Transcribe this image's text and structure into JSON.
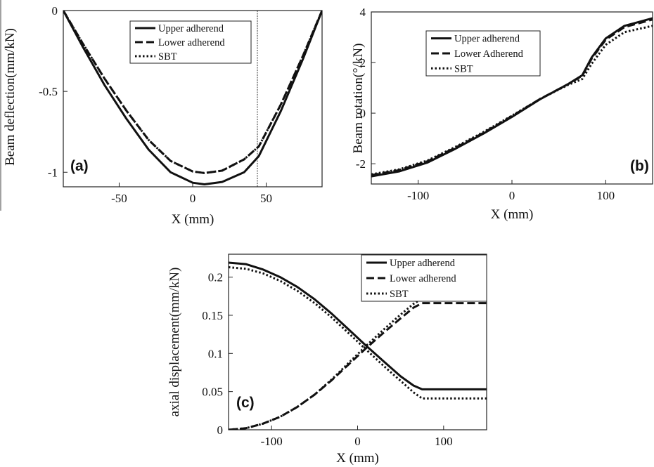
{
  "chart_data": [
    {
      "type": "line",
      "panel_label": "(a)",
      "xlabel": "X (mm)",
      "ylabel": "Beam deflection(mm/kN)",
      "xlim": [
        -88,
        88
      ],
      "ylim": [
        -1.09,
        0
      ],
      "xticks": [
        -50,
        0,
        50
      ],
      "yticks": [
        0,
        -0.5,
        -1
      ],
      "ytick_labels": [
        "0",
        "-0.5",
        "-1"
      ],
      "legend": "top-right",
      "vertical_marker_x": 44,
      "series": [
        {
          "name": "Upper adherend",
          "style": "solid",
          "x": [
            -88,
            -75,
            -60,
            -45,
            -30,
            -15,
            0,
            8,
            20,
            35,
            45,
            60,
            75,
            88
          ],
          "y": [
            0,
            -0.22,
            -0.46,
            -0.67,
            -0.86,
            -1.0,
            -1.065,
            -1.075,
            -1.06,
            -1.0,
            -0.9,
            -0.62,
            -0.3,
            0
          ]
        },
        {
          "name": "Lower adherend",
          "style": "dashed",
          "x": [
            -88,
            -75,
            -60,
            -45,
            -30,
            -15,
            0,
            8,
            20,
            35,
            45,
            60,
            75,
            88
          ],
          "y": [
            0,
            -0.2,
            -0.42,
            -0.62,
            -0.8,
            -0.93,
            -0.995,
            -1.005,
            -0.99,
            -0.92,
            -0.84,
            -0.58,
            -0.28,
            0
          ]
        },
        {
          "name": "SBT",
          "style": "dotted",
          "x": [
            -88,
            -75,
            -60,
            -45,
            -30,
            -15,
            0,
            8,
            20,
            35,
            45,
            60,
            75,
            88
          ],
          "y": [
            0,
            -0.2,
            -0.42,
            -0.62,
            -0.8,
            -0.93,
            -0.995,
            -1.005,
            -0.99,
            -0.92,
            -0.84,
            -0.58,
            -0.28,
            0
          ]
        }
      ]
    },
    {
      "type": "line",
      "panel_label": "(b)",
      "xlabel": "X (mm)",
      "ylabel": "Beam rotation(°/kN)",
      "xlim": [
        -150,
        150
      ],
      "ylim": [
        -2.8,
        4
      ],
      "xticks": [
        -100,
        0,
        100
      ],
      "yticks": [
        4,
        2,
        0,
        -2
      ],
      "ytick_labels": [
        "4",
        "2",
        "0",
        "-2"
      ],
      "legend": "top-left",
      "series": [
        {
          "name": "Upper adherend",
          "style": "solid",
          "x": [
            -150,
            -120,
            -90,
            -60,
            -30,
            0,
            30,
            60,
            75,
            85,
            100,
            120,
            150
          ],
          "y": [
            -2.5,
            -2.3,
            -1.95,
            -1.4,
            -0.8,
            -0.15,
            0.55,
            1.15,
            1.5,
            2.2,
            2.95,
            3.45,
            3.75
          ]
        },
        {
          "name": "Lower Adherend",
          "style": "dashed",
          "x": [
            -150,
            -120,
            -90,
            -60,
            -30,
            0,
            30,
            60,
            75,
            85,
            100,
            120,
            150
          ],
          "y": [
            -2.45,
            -2.25,
            -1.9,
            -1.36,
            -0.77,
            -0.12,
            0.56,
            1.15,
            1.48,
            2.15,
            2.9,
            3.4,
            3.7
          ]
        },
        {
          "name": "SBT",
          "style": "dotted",
          "x": [
            -150,
            -120,
            -90,
            -60,
            -30,
            0,
            30,
            60,
            75,
            85,
            100,
            120,
            150
          ],
          "y": [
            -2.42,
            -2.22,
            -1.87,
            -1.33,
            -0.74,
            -0.1,
            0.56,
            1.12,
            1.35,
            1.95,
            2.7,
            3.2,
            3.45
          ]
        }
      ]
    },
    {
      "type": "line",
      "panel_label": "(c)",
      "xlabel": "X (mm)",
      "ylabel": "axial displacement(mm/kN)",
      "xlim": [
        -150,
        150
      ],
      "ylim": [
        0,
        0.23
      ],
      "xticks": [
        -100,
        0,
        100
      ],
      "yticks": [
        0,
        0.05,
        0.1,
        0.15,
        0.2
      ],
      "ytick_labels": [
        "0",
        "0.05",
        "0.1",
        "0.15",
        "0.2"
      ],
      "legend": "top-right",
      "series": [
        {
          "name": "Upper adherend",
          "style": "solid",
          "x": [
            -150,
            -130,
            -110,
            -90,
            -70,
            -50,
            -30,
            -10,
            10,
            30,
            50,
            65,
            75,
            100,
            150
          ],
          "y": [
            0.219,
            0.217,
            0.21,
            0.2,
            0.187,
            0.171,
            0.152,
            0.131,
            0.11,
            0.09,
            0.07,
            0.058,
            0.053,
            0.053,
            0.053
          ]
        },
        {
          "name": "Lower adherend",
          "style": "dashed",
          "x": [
            -150,
            -130,
            -110,
            -90,
            -70,
            -50,
            -30,
            -10,
            10,
            30,
            50,
            65,
            75,
            100,
            150
          ],
          "y": [
            0,
            0.002,
            0.008,
            0.017,
            0.03,
            0.046,
            0.065,
            0.086,
            0.107,
            0.127,
            0.146,
            0.16,
            0.166,
            0.166,
            0.166
          ]
        },
        {
          "name": "SBT",
          "style": "dotted",
          "x": [
            -150,
            -130,
            -110,
            -90,
            -70,
            -50,
            -30,
            -10,
            10,
            30,
            50,
            65,
            75,
            100,
            150
          ],
          "y": [
            0.213,
            0.211,
            0.205,
            0.195,
            0.182,
            0.166,
            0.147,
            0.126,
            0.105,
            0.084,
            0.064,
            0.049,
            0.041,
            0.041,
            0.041
          ]
        },
        {
          "name": "",
          "style": "dotted",
          "x": [
            -150,
            -130,
            -110,
            -90,
            -70,
            -50,
            -30,
            -10,
            10,
            30,
            50,
            65,
            75,
            100,
            150
          ],
          "y": [
            0,
            0.002,
            0.008,
            0.017,
            0.03,
            0.046,
            0.066,
            0.088,
            0.11,
            0.131,
            0.151,
            0.165,
            0.172,
            0.172,
            0.172
          ]
        }
      ]
    }
  ]
}
